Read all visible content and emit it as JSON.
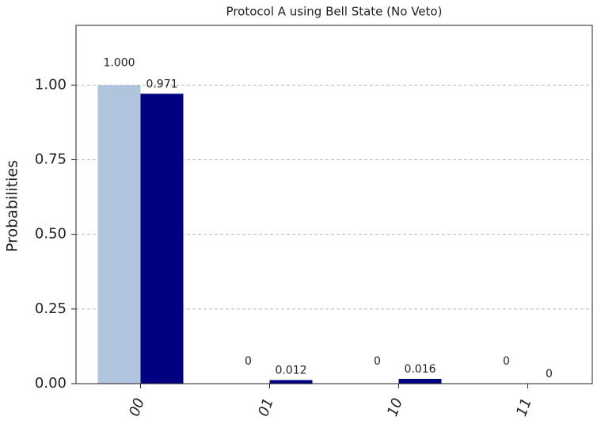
{
  "chart_data": {
    "type": "bar",
    "title": "Protocol A using Bell State (No Veto)",
    "y_label": "Probabilities",
    "categories": [
      "00",
      "01",
      "10",
      "11"
    ],
    "series": [
      {
        "color": "#b0c4de",
        "values": [
          1.0,
          0,
          0,
          0
        ],
        "value_labels": [
          "1.000",
          "0",
          "0",
          "0"
        ]
      },
      {
        "color": "#000080",
        "values": [
          0.971,
          0.012,
          0.016,
          0
        ],
        "value_labels": [
          "0.971",
          "0.012",
          "0.016",
          "0"
        ]
      }
    ],
    "ylim": [
      0,
      1.2
    ],
    "yticks": [
      {
        "value": 0,
        "label": "0.00"
      },
      {
        "value": 0.25,
        "label": "0.25"
      },
      {
        "value": 0.5,
        "label": "0.50"
      },
      {
        "value": 0.75,
        "label": "0.75"
      },
      {
        "value": 1,
        "label": "1.00"
      }
    ],
    "grid": true
  }
}
